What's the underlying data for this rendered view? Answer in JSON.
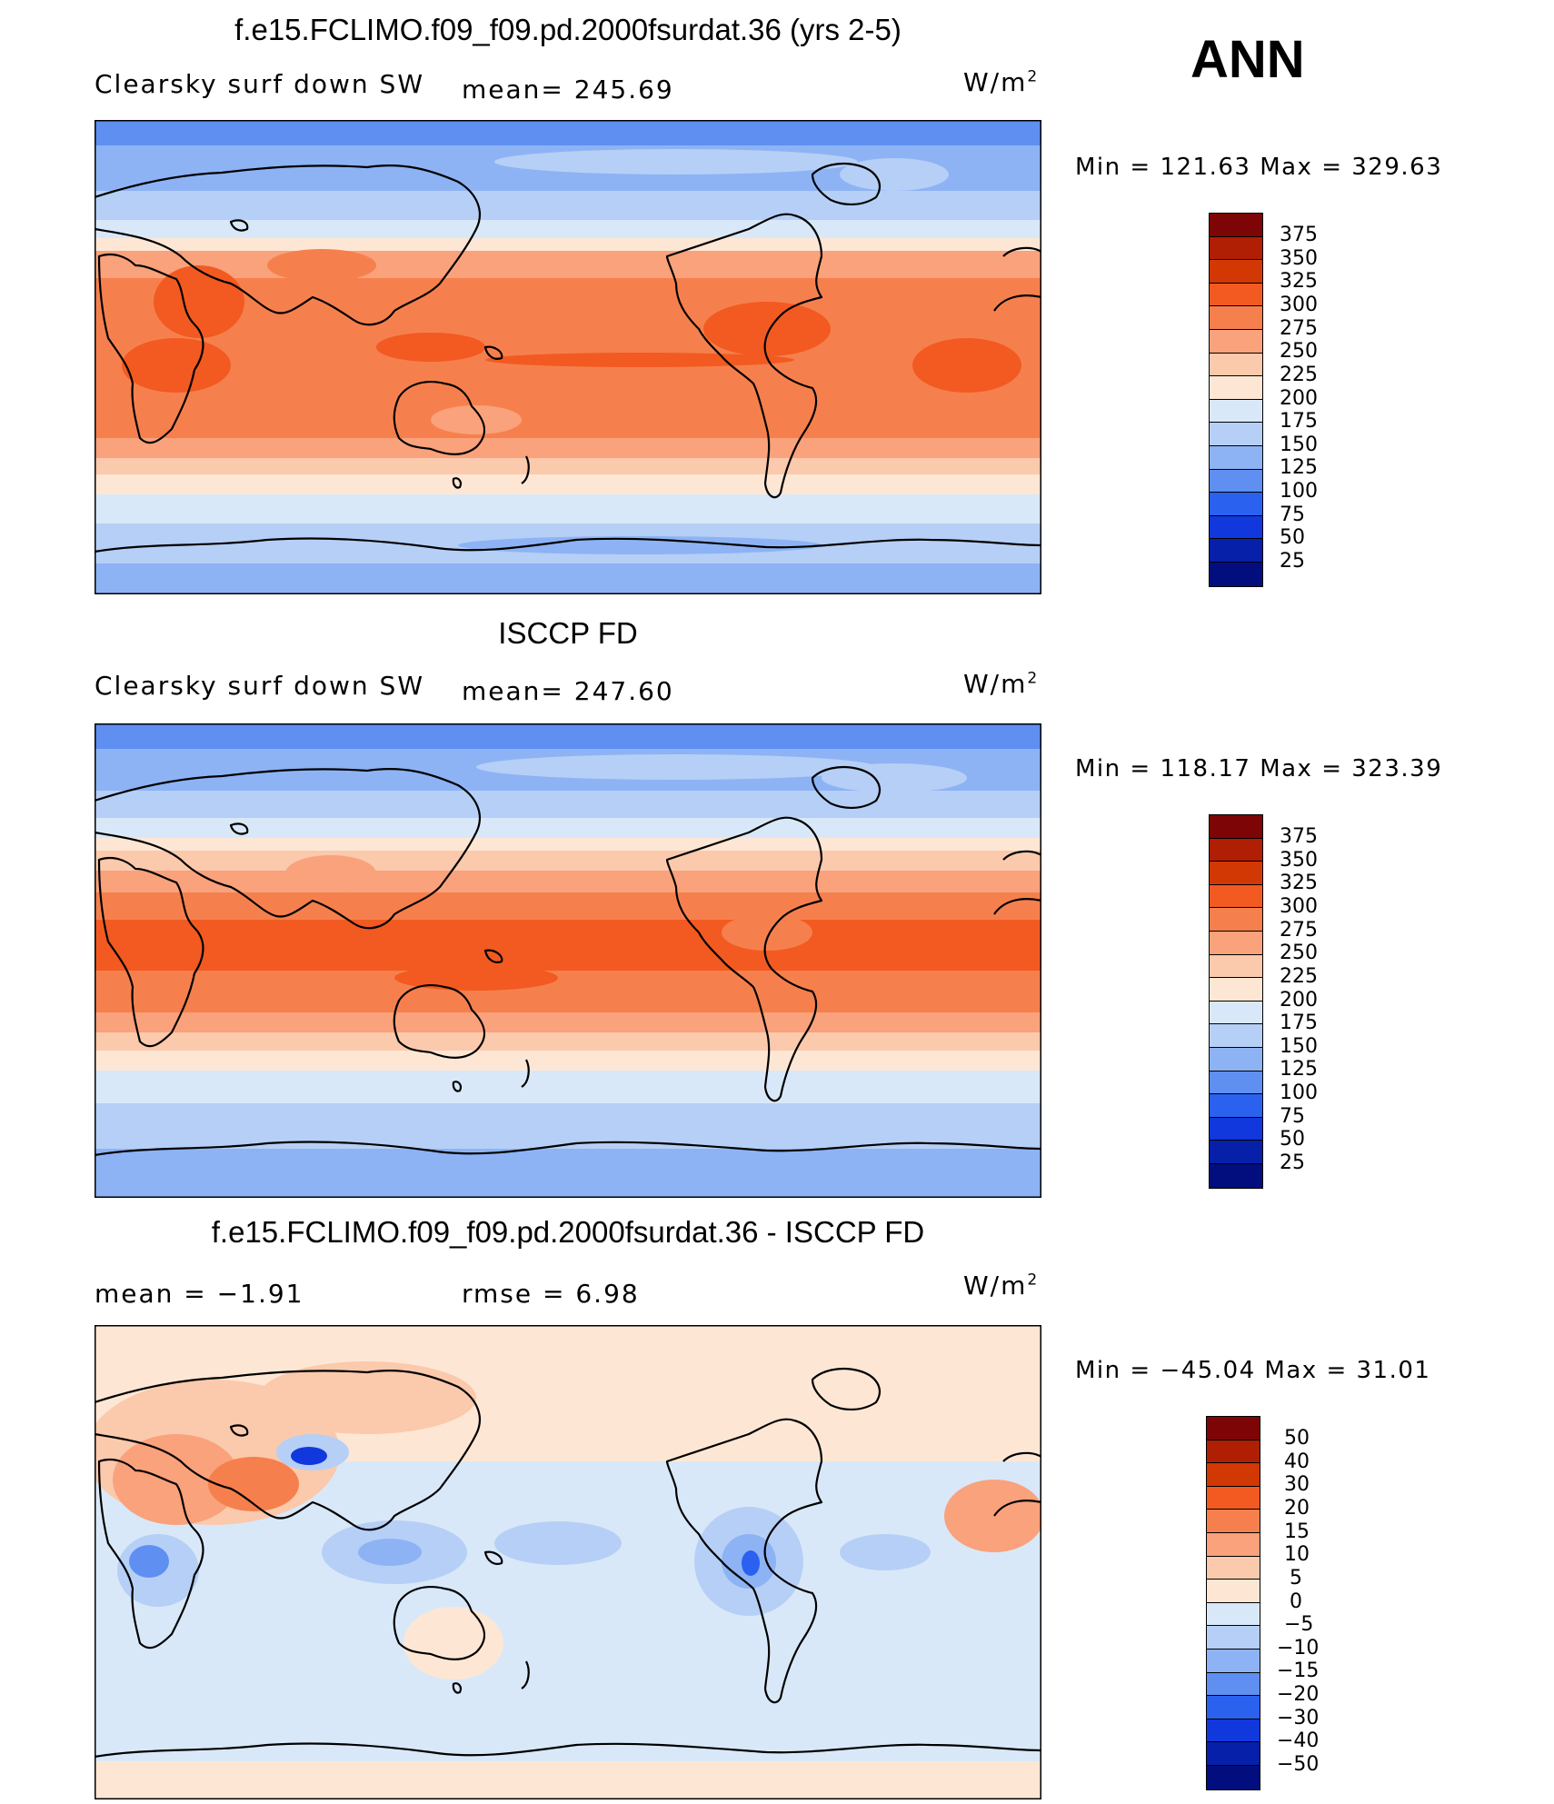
{
  "season": "ANN",
  "units_text": "W/m",
  "units_sup": "2",
  "panels": [
    {
      "title": "f.e15.FCLIMO.f09_f09.pd.2000fsurdat.36 (yrs 2-5)",
      "left_label": "Clearsky surf down SW",
      "mid_label": "mean=  245.69",
      "minmax": "Min  =  121.63  Max  =  329.63",
      "cbar_labels": [
        "375",
        "350",
        "325",
        "300",
        "275",
        "250",
        "225",
        "200",
        "175",
        "150",
        "125",
        "100",
        "75",
        "50",
        "25"
      ]
    },
    {
      "title": "ISCCP FD",
      "left_label": "Clearsky surf down SW",
      "mid_label": "mean=  247.60",
      "minmax": "Min  =  118.17  Max  =  323.39",
      "cbar_labels": [
        "375",
        "350",
        "325",
        "300",
        "275",
        "250",
        "225",
        "200",
        "175",
        "150",
        "125",
        "100",
        "75",
        "50",
        "25"
      ]
    },
    {
      "title": "f.e15.FCLIMO.f09_f09.pd.2000fsurdat.36 - ISCCP FD",
      "left_label": "mean  =    −1.91",
      "mid_label": "rmse  =      6.98",
      "minmax": "Min  =  −45.04  Max  =    31.01",
      "cbar_labels": [
        "50",
        "40",
        "30",
        "20",
        "15",
        "10",
        "5",
        "0",
        "−5",
        "−10",
        "−15",
        "−20",
        "−30",
        "−40",
        "−50"
      ]
    }
  ],
  "colors": {
    "palette": [
      "#7e0505",
      "#b01e04",
      "#d23804",
      "#f25a21",
      "#f6804d",
      "#f9a27b",
      "#fbc9ac",
      "#fde7d4",
      "#d9e8f8",
      "#b6cff6",
      "#8db3f4",
      "#5e8ff1",
      "#2b61ef",
      "#1038dc",
      "#0620aa",
      "#020e7d"
    ]
  }
}
